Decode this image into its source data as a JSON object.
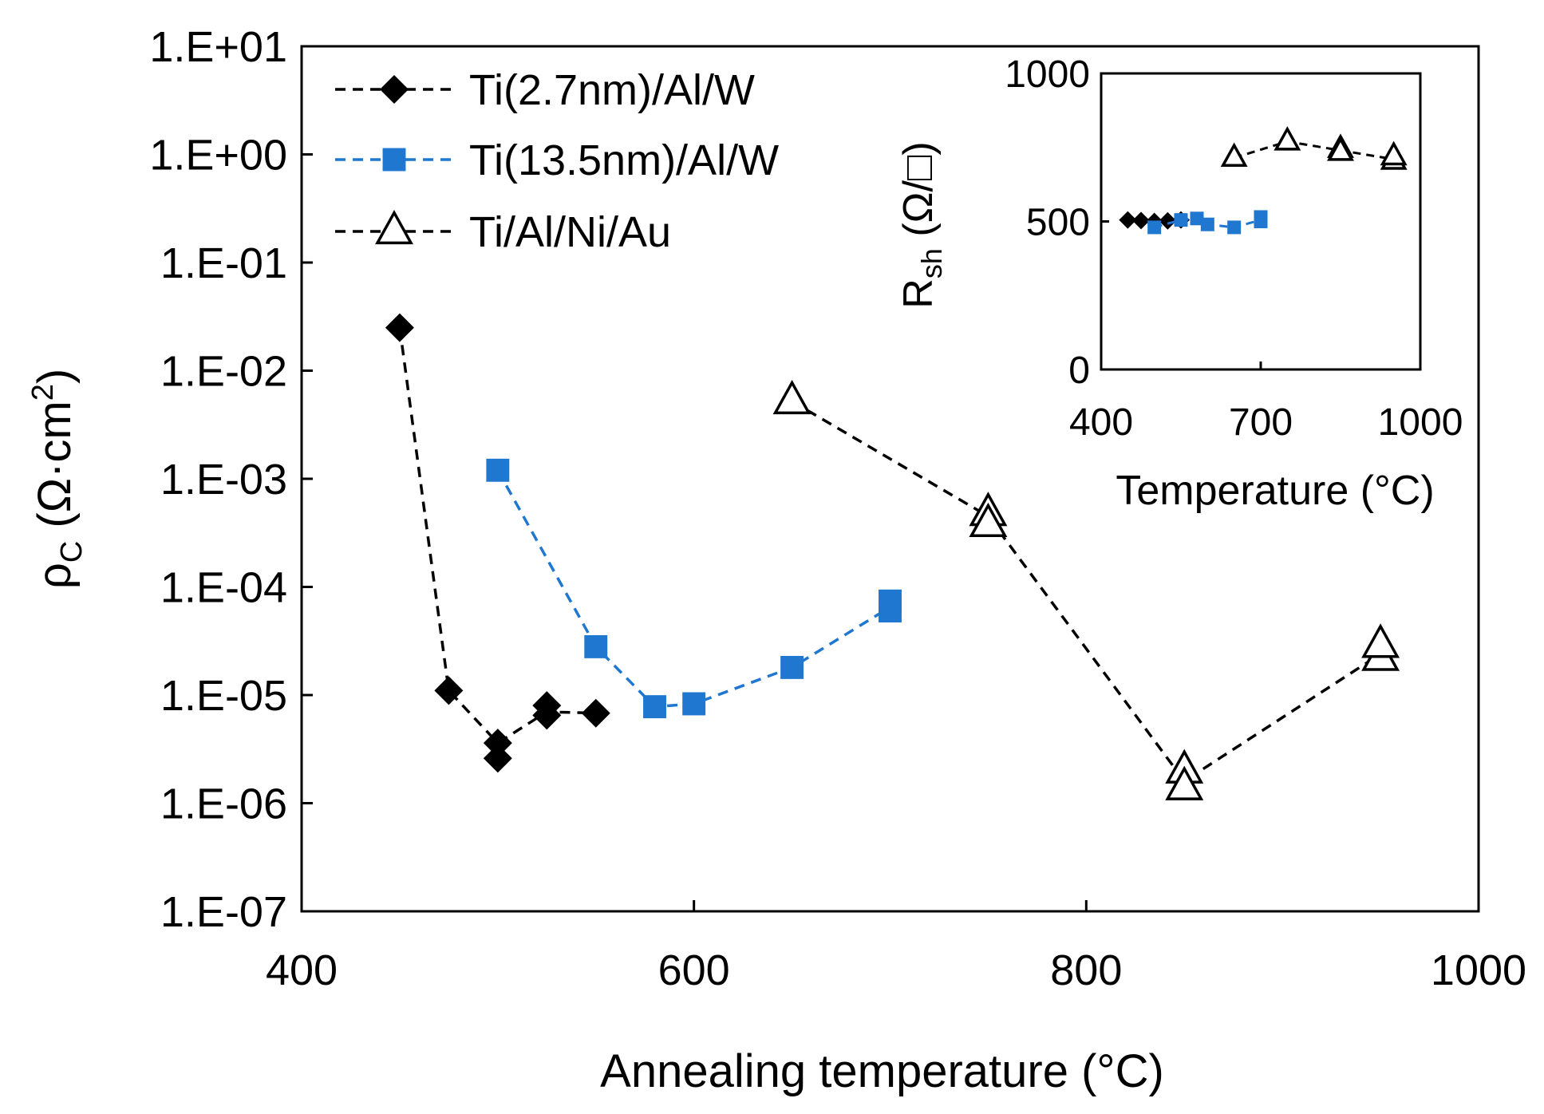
{
  "chart_data": [
    {
      "type": "scatter",
      "title": "",
      "xlabel": "Annealing temperature (°C)",
      "ylabel_main": "ρ",
      "ylabel_sub": "C",
      "ylabel_units_pre": " (Ω·cm",
      "ylabel_units_sup": "2",
      "ylabel_units_post": ")",
      "yscale": "log",
      "xlim": [
        400,
        1000
      ],
      "ylim": [
        1e-07,
        10
      ],
      "xticks": [
        400,
        600,
        800,
        1000
      ],
      "xtick_labels": [
        "400",
        "600",
        "800",
        "1000"
      ],
      "ytick_exponents": [
        1,
        0,
        -1,
        -2,
        -3,
        -4,
        -5,
        -6,
        -7
      ],
      "ytick_labels": [
        "1.E+01",
        "1.E+00",
        "1.E-01",
        "1.E-02",
        "1.E-03",
        "1.E-04",
        "1.E-05",
        "1.E-06",
        "1.E-07"
      ],
      "legend_position": "top-left",
      "series": [
        {
          "name": "Ti(2.7nm)/Al/W",
          "marker": "diamond",
          "color": "#000000",
          "line": "dashed",
          "x": [
            450,
            475,
            500,
            500,
            525,
            525,
            550
          ],
          "y": [
            0.025,
            1.1e-05,
            2.6e-06,
            3.6e-06,
            6.5e-06,
            8e-06,
            6.8e-06
          ],
          "line_path": [
            [
              450,
              0.025
            ],
            [
              475,
              1.1e-05
            ],
            [
              500,
              3.6e-06
            ],
            [
              525,
              7e-06
            ],
            [
              550,
              6.8e-06
            ]
          ]
        },
        {
          "name": "Ti(13.5nm)/Al/W",
          "marker": "square",
          "color": "#1f77d0",
          "line": "dashed",
          "x": [
            500,
            550,
            580,
            600,
            650,
            700,
            700
          ],
          "y": [
            0.0012,
            2.8e-05,
            7.8e-06,
            8.3e-06,
            1.8e-05,
            6e-05,
            7.4e-05
          ],
          "line_path": [
            [
              500,
              0.0012
            ],
            [
              550,
              2.8e-05
            ],
            [
              580,
              7.8e-06
            ],
            [
              600,
              8.3e-06
            ],
            [
              650,
              1.8e-05
            ],
            [
              700,
              6.5e-05
            ]
          ]
        },
        {
          "name": "Ti/Al/Ni/Au",
          "marker": "triangle-open",
          "color": "#000000",
          "line": "dashed",
          "x": [
            650,
            750,
            750,
            850,
            850,
            950,
            950
          ],
          "y": [
            0.0052,
            0.00048,
            0.00038,
            2e-06,
            1.4e-06,
            2.2e-05,
            2.9e-05
          ],
          "line_path": [
            [
              650,
              0.0052
            ],
            [
              750,
              0.00045
            ],
            [
              850,
              1.6e-06
            ],
            [
              950,
              2.4e-05
            ]
          ]
        }
      ]
    },
    {
      "type": "scatter",
      "title": "",
      "xlabel": "Temperature (°C)",
      "ylabel_main": "R",
      "ylabel_sub": "sh",
      "ylabel_units": " (Ω/□)",
      "xlim": [
        400,
        1000
      ],
      "ylim": [
        0,
        1000
      ],
      "xticks": [
        400,
        700,
        1000
      ],
      "xtick_labels": [
        "400",
        "700",
        "1000"
      ],
      "yticks": [
        0,
        500,
        1000
      ],
      "ytick_labels": [
        "0",
        "500",
        "1000"
      ],
      "legend_position": "none",
      "series": [
        {
          "name": "Ti(2.7nm)/Al/W",
          "marker": "diamond",
          "color": "#000000",
          "x": [
            450,
            475,
            500,
            525,
            550
          ],
          "y": [
            505,
            503,
            500,
            502,
            505
          ],
          "line_path": [
            [
              450,
              505
            ],
            [
              475,
              503
            ],
            [
              500,
              500
            ],
            [
              525,
              502
            ],
            [
              550,
              505
            ]
          ]
        },
        {
          "name": "Ti(13.5nm)/Al/W",
          "marker": "square",
          "color": "#1f77d0",
          "x": [
            500,
            550,
            580,
            600,
            650,
            700,
            700
          ],
          "y": [
            480,
            505,
            510,
            490,
            480,
            500,
            515
          ],
          "line_path": [
            [
              500,
              480
            ],
            [
              550,
              505
            ],
            [
              580,
              510
            ],
            [
              600,
              490
            ],
            [
              650,
              480
            ],
            [
              700,
              505
            ]
          ]
        },
        {
          "name": "Ti/Al/Ni/Au",
          "marker": "triangle-open",
          "color": "#000000",
          "x": [
            650,
            750,
            850,
            850,
            950,
            950
          ],
          "y": [
            715,
            770,
            745,
            735,
            705,
            720
          ],
          "line_path": [
            [
              650,
              715
            ],
            [
              750,
              770
            ],
            [
              850,
              740
            ],
            [
              950,
              710
            ]
          ]
        }
      ]
    }
  ]
}
